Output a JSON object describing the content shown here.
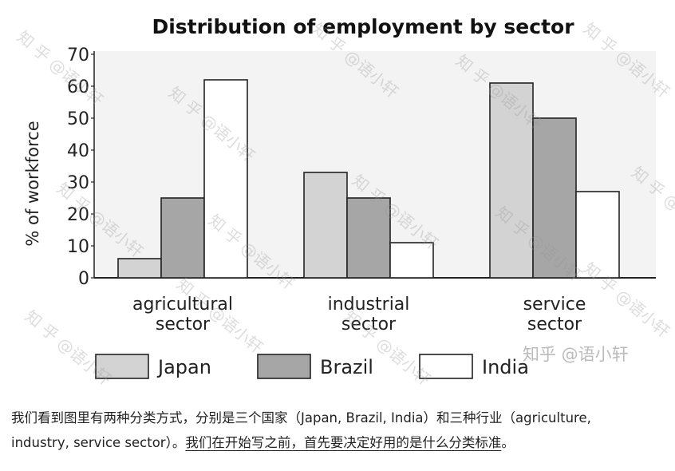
{
  "chart_data": {
    "type": "bar",
    "title": "Distribution of employment by sector",
    "ylabel": "% of workforce",
    "xlabel": "",
    "ylim": [
      0,
      70
    ],
    "yticks": [
      0,
      10,
      20,
      30,
      40,
      50,
      60,
      70
    ],
    "categories": [
      "agricultural\nsector",
      "industrial\nsector",
      "service\nsector"
    ],
    "series": [
      {
        "name": "Japan",
        "color": "#d3d3d3",
        "values": [
          6,
          33,
          61
        ]
      },
      {
        "name": "Brazil",
        "color": "#a6a6a6",
        "values": [
          25,
          25,
          50
        ]
      },
      {
        "name": "India",
        "color": "#ffffff",
        "values": [
          62,
          11,
          27
        ]
      }
    ],
    "legend_position": "bottom",
    "grid": false
  },
  "watermark": {
    "repeat_text": "知 乎 @语小轩",
    "brand": "知乎 @语小轩"
  },
  "caption": {
    "line1": "我们看到图里有两种分类方式，分别是三个国家（Japan, Brazil, India）和三种行业（agriculture,",
    "line2_plain": "industry, service sector）。",
    "line2_underlined": "我们在开始写之前，首先要决定好用的是什么分类标准",
    "line2_end": "。"
  }
}
